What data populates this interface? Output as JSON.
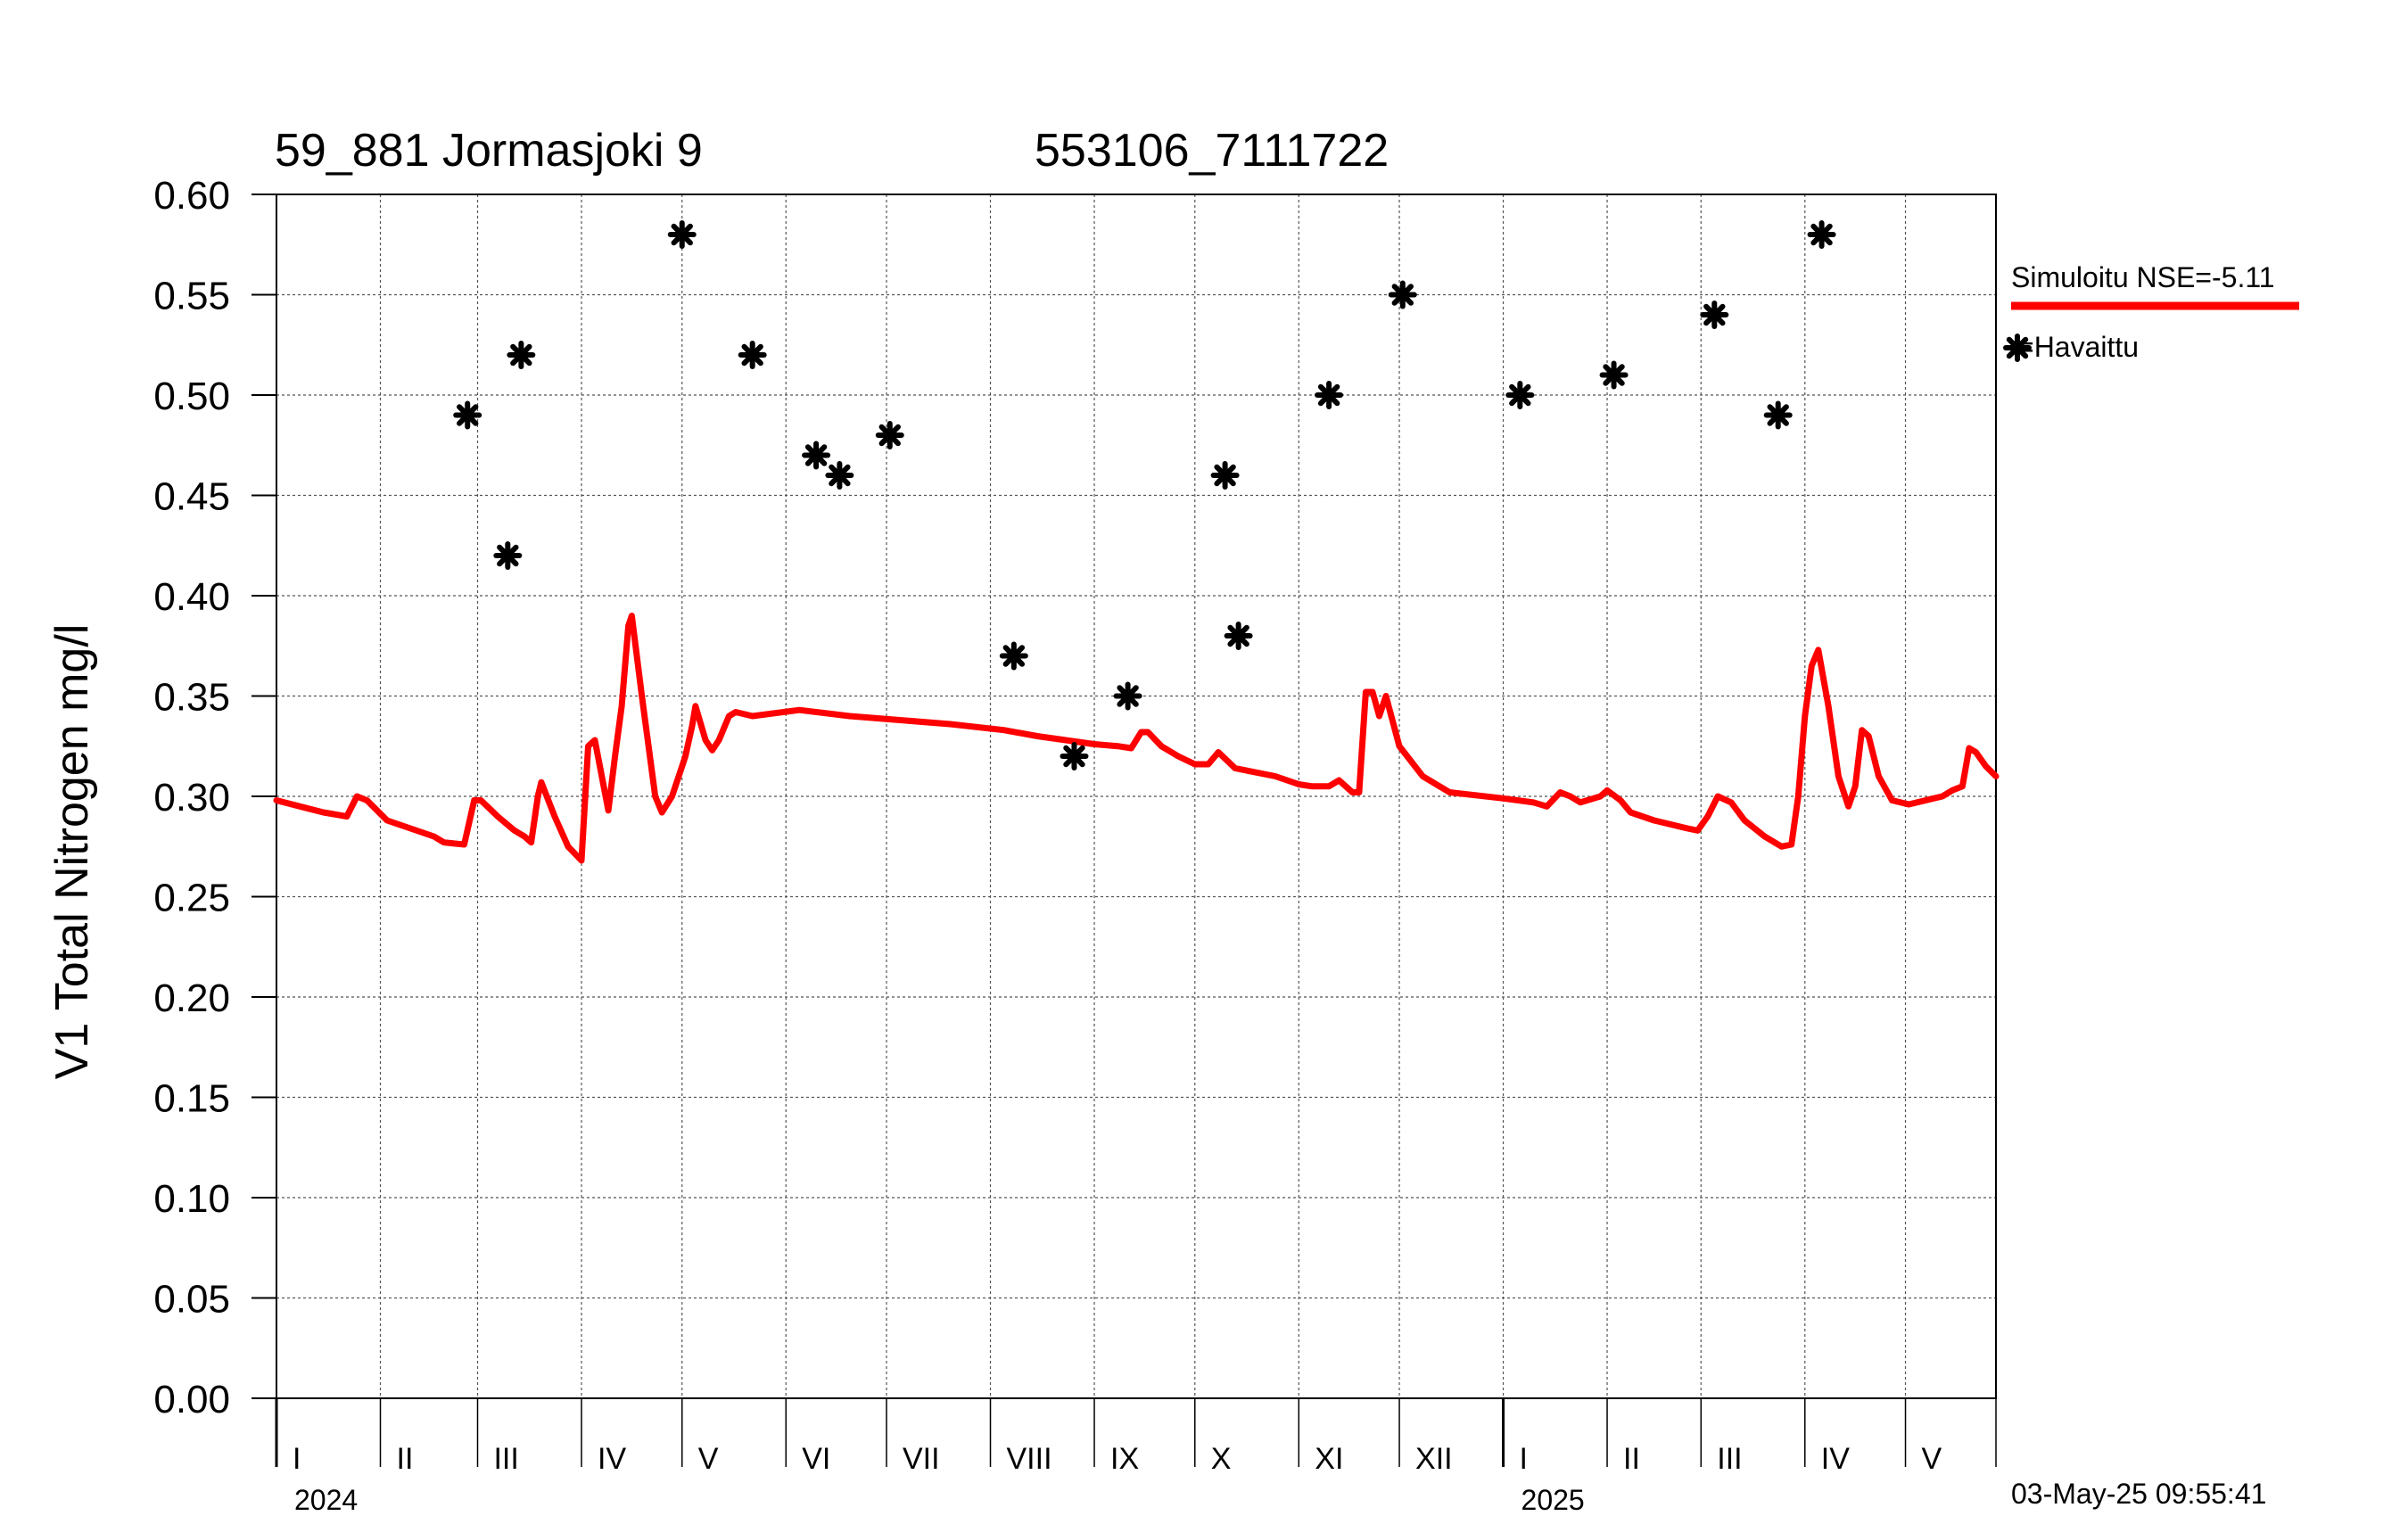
{
  "chart_data": {
    "type": "line",
    "title": "59_881 Jormasjoki 9",
    "subtitle": "553106_7111722",
    "ylabel": "V1 Total Nitrogen mg/l",
    "ylim": [
      0,
      0.6
    ],
    "yticks": [
      "0.00",
      "0.05",
      "0.10",
      "0.15",
      "0.20",
      "0.25",
      "0.30",
      "0.35",
      "0.40",
      "0.45",
      "0.50",
      "0.55",
      "0.60"
    ],
    "x_range": [
      "2024-01-01",
      "2025-05-28"
    ],
    "grid": true,
    "legend_position": "right",
    "months": [
      {
        "label": "I",
        "start": "2024-01-01"
      },
      {
        "label": "II",
        "start": "2024-02-01"
      },
      {
        "label": "III",
        "start": "2024-03-01"
      },
      {
        "label": "IV",
        "start": "2024-04-01"
      },
      {
        "label": "V",
        "start": "2024-05-01"
      },
      {
        "label": "VI",
        "start": "2024-06-01"
      },
      {
        "label": "VII",
        "start": "2024-07-01"
      },
      {
        "label": "VIII",
        "start": "2024-08-01"
      },
      {
        "label": "IX",
        "start": "2024-09-01"
      },
      {
        "label": "X",
        "start": "2024-10-01"
      },
      {
        "label": "XI",
        "start": "2024-11-01"
      },
      {
        "label": "XII",
        "start": "2024-12-01"
      },
      {
        "label": "I",
        "start": "2025-01-01"
      },
      {
        "label": "II",
        "start": "2025-02-01"
      },
      {
        "label": "III",
        "start": "2025-03-01"
      },
      {
        "label": "IV",
        "start": "2025-04-01"
      },
      {
        "label": "V",
        "start": "2025-05-01"
      }
    ],
    "years": [
      {
        "label": "2024",
        "start": "2024-01-01"
      },
      {
        "label": "2025",
        "start": "2025-01-01"
      }
    ],
    "series": [
      {
        "name": "Simuloitu NSE=-5.11",
        "kind": "line",
        "color": "#ff0000",
        "points": [
          [
            "2024-01-01",
            0.298
          ],
          [
            "2024-01-08",
            0.295
          ],
          [
            "2024-01-15",
            0.292
          ],
          [
            "2024-01-22",
            0.29
          ],
          [
            "2024-01-25",
            0.3
          ],
          [
            "2024-01-28",
            0.298
          ],
          [
            "2024-02-03",
            0.288
          ],
          [
            "2024-02-10",
            0.284
          ],
          [
            "2024-02-17",
            0.28
          ],
          [
            "2024-02-20",
            0.277
          ],
          [
            "2024-02-26",
            0.276
          ],
          [
            "2024-02-29",
            0.298
          ],
          [
            "2024-03-02",
            0.298
          ],
          [
            "2024-03-07",
            0.29
          ],
          [
            "2024-03-12",
            0.283
          ],
          [
            "2024-03-15",
            0.28
          ],
          [
            "2024-03-17",
            0.277
          ],
          [
            "2024-03-19",
            0.3
          ],
          [
            "2024-03-20",
            0.307
          ],
          [
            "2024-03-24",
            0.29
          ],
          [
            "2024-03-28",
            0.275
          ],
          [
            "2024-04-01",
            0.268
          ],
          [
            "2024-04-03",
            0.325
          ],
          [
            "2024-04-05",
            0.328
          ],
          [
            "2024-04-09",
            0.293
          ],
          [
            "2024-04-11",
            0.32
          ],
          [
            "2024-04-13",
            0.345
          ],
          [
            "2024-04-15",
            0.385
          ],
          [
            "2024-04-16",
            0.39
          ],
          [
            "2024-04-19",
            0.35
          ],
          [
            "2024-04-23",
            0.3
          ],
          [
            "2024-04-25",
            0.292
          ],
          [
            "2024-04-28",
            0.3
          ],
          [
            "2024-05-01",
            0.315
          ],
          [
            "2024-05-02",
            0.32
          ],
          [
            "2024-05-04",
            0.335
          ],
          [
            "2024-05-05",
            0.345
          ],
          [
            "2024-05-08",
            0.328
          ],
          [
            "2024-05-10",
            0.323
          ],
          [
            "2024-05-12",
            0.328
          ],
          [
            "2024-05-15",
            0.34
          ],
          [
            "2024-05-17",
            0.342
          ],
          [
            "2024-05-22",
            0.34
          ],
          [
            "2024-06-05",
            0.343
          ],
          [
            "2024-06-20",
            0.34
          ],
          [
            "2024-07-05",
            0.338
          ],
          [
            "2024-07-20",
            0.336
          ],
          [
            "2024-08-05",
            0.333
          ],
          [
            "2024-08-15",
            0.33
          ],
          [
            "2024-09-01",
            0.326
          ],
          [
            "2024-09-08",
            0.325
          ],
          [
            "2024-09-12",
            0.324
          ],
          [
            "2024-09-15",
            0.332
          ],
          [
            "2024-09-17",
            0.332
          ],
          [
            "2024-09-21",
            0.325
          ],
          [
            "2024-09-26",
            0.32
          ],
          [
            "2024-10-01",
            0.316
          ],
          [
            "2024-10-05",
            0.316
          ],
          [
            "2024-10-08",
            0.322
          ],
          [
            "2024-10-13",
            0.314
          ],
          [
            "2024-10-25",
            0.31
          ],
          [
            "2024-11-01",
            0.306
          ],
          [
            "2024-11-05",
            0.305
          ],
          [
            "2024-11-10",
            0.305
          ],
          [
            "2024-11-13",
            0.308
          ],
          [
            "2024-11-17",
            0.302
          ],
          [
            "2024-11-19",
            0.302
          ],
          [
            "2024-11-21",
            0.352
          ],
          [
            "2024-11-23",
            0.352
          ],
          [
            "2024-11-25",
            0.34
          ],
          [
            "2024-11-27",
            0.35
          ],
          [
            "2024-12-01",
            0.325
          ],
          [
            "2024-12-08",
            0.31
          ],
          [
            "2024-12-16",
            0.302
          ],
          [
            "2025-01-01",
            0.299
          ],
          [
            "2025-01-10",
            0.297
          ],
          [
            "2025-01-14",
            0.295
          ],
          [
            "2025-01-18",
            0.302
          ],
          [
            "2025-01-21",
            0.3
          ],
          [
            "2025-01-24",
            0.297
          ],
          [
            "2025-01-30",
            0.3
          ],
          [
            "2025-02-01",
            0.303
          ],
          [
            "2025-02-05",
            0.298
          ],
          [
            "2025-02-08",
            0.292
          ],
          [
            "2025-02-15",
            0.288
          ],
          [
            "2025-02-25",
            0.284
          ],
          [
            "2025-02-28",
            0.283
          ],
          [
            "2025-03-03",
            0.29
          ],
          [
            "2025-03-06",
            0.3
          ],
          [
            "2025-03-10",
            0.297
          ],
          [
            "2025-03-14",
            0.288
          ],
          [
            "2025-03-20",
            0.28
          ],
          [
            "2025-03-25",
            0.275
          ],
          [
            "2025-03-28",
            0.276
          ],
          [
            "2025-03-30",
            0.3
          ],
          [
            "2025-04-01",
            0.34
          ],
          [
            "2025-04-03",
            0.365
          ],
          [
            "2025-04-05",
            0.373
          ],
          [
            "2025-04-08",
            0.345
          ],
          [
            "2025-04-11",
            0.31
          ],
          [
            "2025-04-14",
            0.295
          ],
          [
            "2025-04-16",
            0.305
          ],
          [
            "2025-04-18",
            0.333
          ],
          [
            "2025-04-20",
            0.33
          ],
          [
            "2025-04-23",
            0.31
          ],
          [
            "2025-04-27",
            0.298
          ],
          [
            "2025-05-02",
            0.296
          ],
          [
            "2025-05-07",
            0.298
          ],
          [
            "2025-05-12",
            0.3
          ],
          [
            "2025-05-15",
            0.303
          ],
          [
            "2025-05-18",
            0.305
          ],
          [
            "2025-05-20",
            0.324
          ],
          [
            "2025-05-22",
            0.322
          ],
          [
            "2025-05-25",
            0.315
          ],
          [
            "2025-05-28",
            0.31
          ]
        ]
      },
      {
        "name": "Havaittu",
        "kind": "scatter",
        "color": "#000000",
        "points": [
          [
            "2024-02-27",
            0.49
          ],
          [
            "2024-03-10",
            0.42
          ],
          [
            "2024-03-14",
            0.52
          ],
          [
            "2024-05-01",
            0.58
          ],
          [
            "2024-05-22",
            0.52
          ],
          [
            "2024-06-10",
            0.47
          ],
          [
            "2024-06-17",
            0.46
          ],
          [
            "2024-07-02",
            0.48
          ],
          [
            "2024-08-08",
            0.37
          ],
          [
            "2024-08-26",
            0.32
          ],
          [
            "2024-09-11",
            0.35
          ],
          [
            "2024-10-10",
            0.46
          ],
          [
            "2024-10-14",
            0.38
          ],
          [
            "2024-11-10",
            0.5
          ],
          [
            "2024-12-02",
            0.55
          ],
          [
            "2025-01-06",
            0.5
          ],
          [
            "2025-02-03",
            0.51
          ],
          [
            "2025-03-05",
            0.54
          ],
          [
            "2025-03-24",
            0.49
          ],
          [
            "2025-04-06",
            0.58
          ]
        ]
      }
    ]
  },
  "legend": {
    "simulated_label": "Simuloitu NSE=-5.11",
    "observed_label": "=Havaittu"
  },
  "timestamp": "03-May-25 09:55:41"
}
